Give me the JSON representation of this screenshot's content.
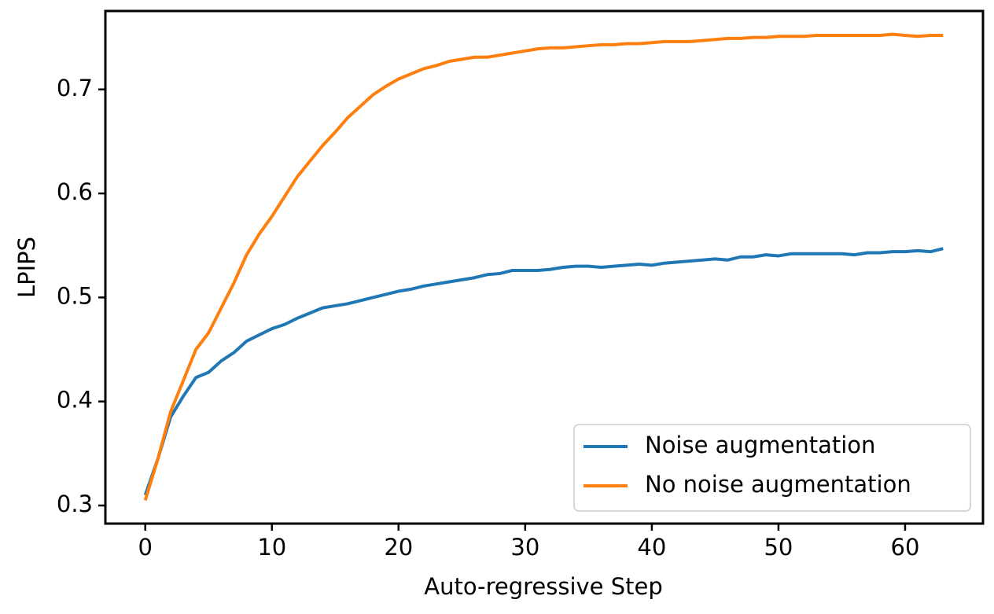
{
  "chart_data": {
    "type": "line",
    "x_label": "Auto-regressive Step",
    "y_label": "LPIPS",
    "x": [
      0,
      1,
      2,
      3,
      4,
      5,
      6,
      7,
      8,
      9,
      10,
      11,
      12,
      13,
      14,
      15,
      16,
      17,
      18,
      19,
      20,
      21,
      22,
      23,
      24,
      25,
      26,
      27,
      28,
      29,
      30,
      31,
      32,
      33,
      34,
      35,
      36,
      37,
      38,
      39,
      40,
      41,
      42,
      43,
      44,
      45,
      46,
      47,
      48,
      49,
      50,
      51,
      52,
      53,
      54,
      55,
      56,
      57,
      58,
      59,
      60,
      61,
      62,
      63
    ],
    "series": [
      {
        "name": "Noise augmentation",
        "color": "#1f77b4",
        "values": [
          0.31,
          0.345,
          0.385,
          0.405,
          0.423,
          0.428,
          0.439,
          0.447,
          0.458,
          0.464,
          0.47,
          0.474,
          0.48,
          0.485,
          0.49,
          0.492,
          0.494,
          0.497,
          0.5,
          0.503,
          0.506,
          0.508,
          0.511,
          0.513,
          0.515,
          0.517,
          0.519,
          0.522,
          0.523,
          0.526,
          0.526,
          0.526,
          0.527,
          0.529,
          0.53,
          0.53,
          0.529,
          0.53,
          0.531,
          0.532,
          0.531,
          0.533,
          0.534,
          0.535,
          0.536,
          0.537,
          0.536,
          0.539,
          0.539,
          0.541,
          0.54,
          0.542,
          0.542,
          0.542,
          0.542,
          0.542,
          0.541,
          0.543,
          0.543,
          0.544,
          0.544,
          0.545,
          0.544,
          0.547
        ]
      },
      {
        "name": "No noise augmentation",
        "color": "#ff7f0e",
        "values": [
          0.305,
          0.345,
          0.39,
          0.42,
          0.45,
          0.466,
          0.49,
          0.514,
          0.541,
          0.561,
          0.578,
          0.597,
          0.616,
          0.631,
          0.646,
          0.659,
          0.673,
          0.684,
          0.695,
          0.703,
          0.71,
          0.715,
          0.72,
          0.723,
          0.727,
          0.729,
          0.731,
          0.731,
          0.733,
          0.735,
          0.737,
          0.739,
          0.74,
          0.74,
          0.741,
          0.742,
          0.743,
          0.743,
          0.744,
          0.744,
          0.745,
          0.746,
          0.746,
          0.746,
          0.747,
          0.748,
          0.749,
          0.749,
          0.75,
          0.75,
          0.751,
          0.751,
          0.751,
          0.752,
          0.752,
          0.752,
          0.752,
          0.752,
          0.752,
          0.753,
          0.752,
          0.751,
          0.752,
          0.752
        ]
      }
    ],
    "xlim": [
      -3.15,
      66.15
    ],
    "ylim": [
      0.2826,
      0.7754
    ],
    "xticks": [
      0,
      10,
      20,
      30,
      40,
      50,
      60
    ],
    "yticks": [
      0.3,
      0.4,
      0.5,
      0.6,
      0.7
    ],
    "grid": false,
    "legend": "lower right"
  }
}
